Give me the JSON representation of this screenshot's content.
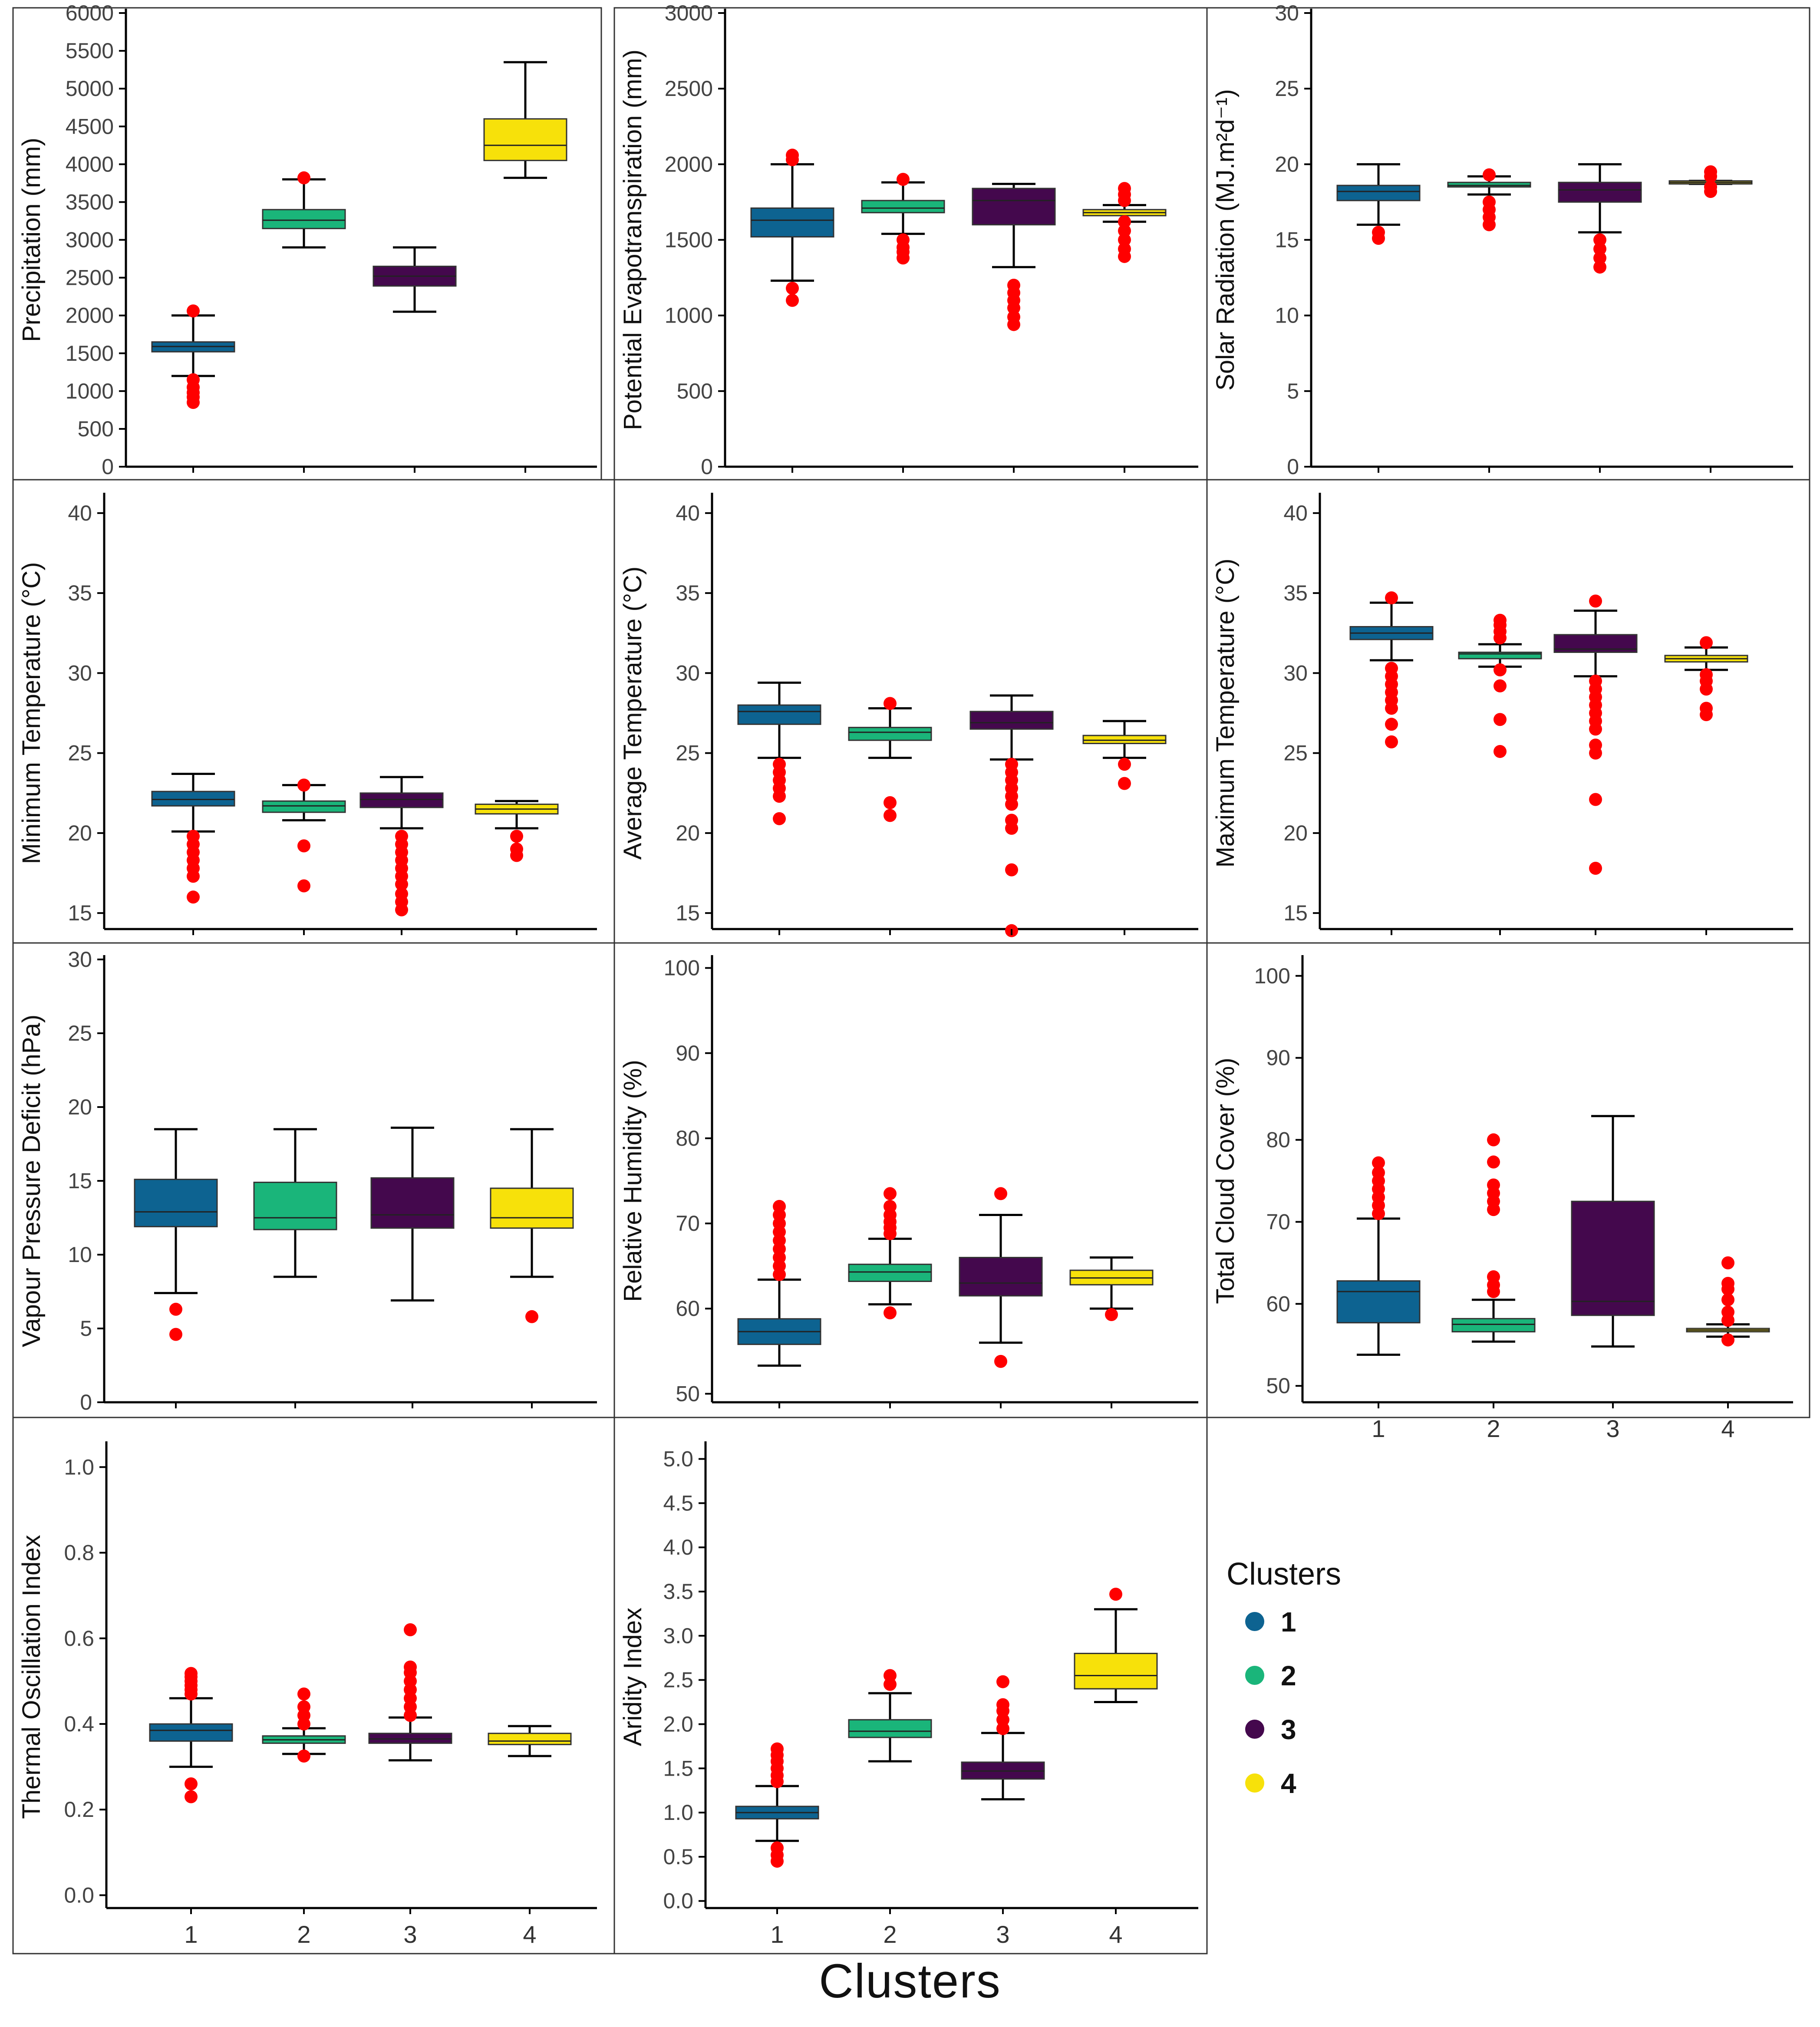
{
  "figure": {
    "x_title": "Clusters",
    "legend_title": "Clusters",
    "outlier_color": "#ff0000",
    "legend": [
      {
        "label": "1",
        "color": "#0d6391"
      },
      {
        "label": "2",
        "color": "#1ab57a"
      },
      {
        "label": "3",
        "color": "#44084d"
      },
      {
        "label": "4",
        "color": "#f7e10a"
      }
    ]
  },
  "chart_data": [
    {
      "type": "box",
      "id": "precip",
      "ylabel": "Precipitation (mm)",
      "ylim": [
        0,
        6000
      ],
      "ticks": [
        "0",
        "500",
        "1000",
        "1500",
        "2000",
        "2500",
        "3000",
        "3500",
        "4000",
        "4500",
        "5000",
        "5500",
        "6000"
      ],
      "tick_values": [
        0,
        500,
        1000,
        1500,
        2000,
        2500,
        3000,
        3500,
        4000,
        4500,
        5000,
        5500,
        6000
      ],
      "categories": [],
      "show_xlabels": false,
      "boxes": [
        {
          "cluster": "1",
          "q1": 1520,
          "median": 1590,
          "q3": 1650,
          "wlo": 1200,
          "whi": 2000,
          "outliers": [
            850,
            920,
            980,
            1050,
            1150,
            2060
          ]
        },
        {
          "cluster": "2",
          "q1": 3150,
          "median": 3260,
          "q3": 3400,
          "wlo": 2900,
          "whi": 3800,
          "outliers": [
            3820
          ]
        },
        {
          "cluster": "3",
          "q1": 2390,
          "median": 2520,
          "q3": 2650,
          "wlo": 2050,
          "whi": 2900,
          "outliers": []
        },
        {
          "cluster": "4",
          "q1": 4050,
          "median": 4250,
          "q3": 4600,
          "wlo": 3820,
          "whi": 5350,
          "outliers": []
        }
      ]
    },
    {
      "type": "box",
      "id": "pet",
      "ylabel": "Potential Evapotranspiration (mm)",
      "ylim": [
        0,
        3000
      ],
      "ticks": [
        "0",
        "500",
        "1000",
        "1500",
        "2000",
        "2500",
        "3000"
      ],
      "tick_values": [
        0,
        500,
        1000,
        1500,
        2000,
        2500,
        3000
      ],
      "categories": [],
      "show_xlabels": false,
      "boxes": [
        {
          "cluster": "1",
          "q1": 1520,
          "median": 1630,
          "q3": 1710,
          "wlo": 1230,
          "whi": 2000,
          "outliers": [
            1100,
            1180,
            2030,
            2060
          ]
        },
        {
          "cluster": "2",
          "q1": 1680,
          "median": 1710,
          "q3": 1760,
          "wlo": 1540,
          "whi": 1880,
          "outliers": [
            1380,
            1420,
            1450,
            1500,
            1900
          ]
        },
        {
          "cluster": "3",
          "q1": 1600,
          "median": 1760,
          "q3": 1840,
          "wlo": 1320,
          "whi": 1870,
          "outliers": [
            940,
            990,
            1050,
            1100,
            1150,
            1200
          ]
        },
        {
          "cluster": "4",
          "q1": 1660,
          "median": 1680,
          "q3": 1700,
          "wlo": 1620,
          "whi": 1730,
          "outliers": [
            1390,
            1440,
            1500,
            1560,
            1620,
            1760,
            1800,
            1840
          ]
        }
      ]
    },
    {
      "type": "box",
      "id": "solar",
      "ylabel": "Solar Radiation (MJ.m²d⁻¹)",
      "ylim": [
        0,
        30
      ],
      "ticks": [
        "0",
        "5",
        "10",
        "15",
        "20",
        "25",
        "30"
      ],
      "tick_values": [
        0,
        5,
        10,
        15,
        20,
        25,
        30
      ],
      "categories": [],
      "show_xlabels": false,
      "boxes": [
        {
          "cluster": "1",
          "q1": 17.6,
          "median": 18.2,
          "q3": 18.6,
          "wlo": 16.0,
          "whi": 20.0,
          "outliers": [
            15.1,
            15.5
          ]
        },
        {
          "cluster": "2",
          "q1": 18.5,
          "median": 18.6,
          "q3": 18.8,
          "wlo": 18.0,
          "whi": 19.2,
          "outliers": [
            16.0,
            16.5,
            17.0,
            17.5,
            19.3
          ]
        },
        {
          "cluster": "3",
          "q1": 17.5,
          "median": 18.3,
          "q3": 18.8,
          "wlo": 15.5,
          "whi": 20.0,
          "outliers": [
            13.2,
            13.8,
            14.4,
            15.0
          ]
        },
        {
          "cluster": "4",
          "q1": 18.7,
          "median": 18.8,
          "q3": 18.9,
          "wlo": 18.7,
          "whi": 18.9,
          "outliers": [
            18.2,
            18.5,
            19.2,
            19.5
          ]
        }
      ]
    },
    {
      "type": "box",
      "id": "tmin",
      "ylabel": "Minimum Temperature (°C)",
      "ylim": [
        14,
        41
      ],
      "ticks": [
        "15",
        "20",
        "25",
        "30",
        "35",
        "40"
      ],
      "tick_values": [
        15,
        20,
        25,
        30,
        35,
        40
      ],
      "categories": [],
      "show_xlabels": false,
      "boxes": [
        {
          "cluster": "1",
          "q1": 21.7,
          "median": 22.1,
          "q3": 22.6,
          "wlo": 20.1,
          "whi": 23.7,
          "outliers": [
            16.0,
            17.3,
            17.8,
            18.3,
            18.8,
            19.3,
            19.8
          ]
        },
        {
          "cluster": "2",
          "q1": 21.3,
          "median": 21.7,
          "q3": 22.0,
          "wlo": 20.8,
          "whi": 23.0,
          "outliers": [
            16.7,
            19.2,
            23.0
          ]
        },
        {
          "cluster": "3",
          "q1": 21.6,
          "median": 22.1,
          "q3": 22.5,
          "wlo": 20.3,
          "whi": 23.5,
          "outliers": [
            15.2,
            15.7,
            16.2,
            16.8,
            17.3,
            17.8,
            18.3,
            18.8,
            19.3,
            19.8
          ]
        },
        {
          "cluster": "4",
          "q1": 21.2,
          "median": 21.5,
          "q3": 21.8,
          "wlo": 20.3,
          "whi": 22.0,
          "outliers": [
            18.6,
            19.0,
            19.8
          ]
        }
      ]
    },
    {
      "type": "box",
      "id": "tavg",
      "ylabel": "Average Temperature (°C)",
      "ylim": [
        14,
        41
      ],
      "ticks": [
        "15",
        "20",
        "25",
        "30",
        "35",
        "40"
      ],
      "tick_values": [
        15,
        20,
        25,
        30,
        35,
        40
      ],
      "categories": [],
      "show_xlabels": false,
      "boxes": [
        {
          "cluster": "1",
          "q1": 26.8,
          "median": 27.6,
          "q3": 28.0,
          "wlo": 24.7,
          "whi": 29.4,
          "outliers": [
            20.9,
            22.3,
            22.8,
            23.3,
            23.8,
            24.3
          ]
        },
        {
          "cluster": "2",
          "q1": 25.8,
          "median": 26.3,
          "q3": 26.6,
          "wlo": 24.7,
          "whi": 27.8,
          "outliers": [
            21.1,
            21.9,
            28.1
          ]
        },
        {
          "cluster": "3",
          "q1": 26.5,
          "median": 26.9,
          "q3": 27.6,
          "wlo": 24.6,
          "whi": 28.6,
          "outliers": [
            13.9,
            17.7,
            20.3,
            20.8,
            21.8,
            22.3,
            22.8,
            23.3,
            23.8,
            24.3
          ]
        },
        {
          "cluster": "4",
          "q1": 25.6,
          "median": 25.8,
          "q3": 26.1,
          "wlo": 24.7,
          "whi": 27.0,
          "outliers": [
            23.1,
            24.3
          ]
        }
      ]
    },
    {
      "type": "box",
      "id": "tmax",
      "ylabel": "Maximum Temperature (°C)",
      "ylim": [
        14,
        41
      ],
      "ticks": [
        "15",
        "20",
        "25",
        "30",
        "35",
        "40"
      ],
      "tick_values": [
        15,
        20,
        25,
        30,
        35,
        40
      ],
      "categories": [],
      "show_xlabels": false,
      "boxes": [
        {
          "cluster": "1",
          "q1": 32.1,
          "median": 32.5,
          "q3": 32.9,
          "wlo": 30.8,
          "whi": 34.4,
          "outliers": [
            25.7,
            26.8,
            27.8,
            28.3,
            28.8,
            29.3,
            29.8,
            30.3,
            34.7
          ]
        },
        {
          "cluster": "2",
          "q1": 30.9,
          "median": 31.2,
          "q3": 31.3,
          "wlo": 30.4,
          "whi": 31.8,
          "outliers": [
            25.1,
            27.1,
            29.2,
            30.2,
            32.2,
            32.6,
            33.0,
            33.3
          ]
        },
        {
          "cluster": "3",
          "q1": 31.3,
          "median": 31.5,
          "q3": 32.4,
          "wlo": 29.8,
          "whi": 33.9,
          "outliers": [
            17.8,
            22.1,
            25.0,
            25.5,
            26.5,
            27.0,
            27.5,
            28.0,
            28.5,
            29.0,
            29.5,
            34.5
          ]
        },
        {
          "cluster": "4",
          "q1": 30.7,
          "median": 30.9,
          "q3": 31.1,
          "wlo": 30.2,
          "whi": 31.6,
          "outliers": [
            27.4,
            27.8,
            29.0,
            29.5,
            29.9,
            31.9
          ]
        }
      ]
    },
    {
      "type": "box",
      "id": "vpd",
      "ylabel": "Vapour Pressure Deficit (hPa)",
      "ylim": [
        0,
        30
      ],
      "ticks": [
        "0",
        "5",
        "10",
        "15",
        "20",
        "25",
        "30"
      ],
      "tick_values": [
        0,
        5,
        10,
        15,
        20,
        25,
        30
      ],
      "categories": [],
      "show_xlabels": false,
      "boxes": [
        {
          "cluster": "1",
          "q1": 11.9,
          "median": 12.9,
          "q3": 15.1,
          "wlo": 7.4,
          "whi": 18.5,
          "outliers": [
            4.6,
            6.3
          ]
        },
        {
          "cluster": "2",
          "q1": 11.7,
          "median": 12.5,
          "q3": 14.9,
          "wlo": 8.5,
          "whi": 18.5,
          "outliers": []
        },
        {
          "cluster": "3",
          "q1": 11.8,
          "median": 12.7,
          "q3": 15.2,
          "wlo": 6.9,
          "whi": 18.6,
          "outliers": []
        },
        {
          "cluster": "4",
          "q1": 11.8,
          "median": 12.5,
          "q3": 14.5,
          "wlo": 8.5,
          "whi": 18.5,
          "outliers": [
            5.8
          ]
        }
      ]
    },
    {
      "type": "box",
      "id": "rh",
      "ylabel": "Relative Humidity (%)",
      "ylim": [
        49,
        101
      ],
      "ticks": [
        "50",
        "60",
        "70",
        "80",
        "90",
        "100"
      ],
      "tick_values": [
        50,
        60,
        70,
        80,
        90,
        100
      ],
      "categories": [],
      "show_xlabels": false,
      "boxes": [
        {
          "cluster": "1",
          "q1": 55.8,
          "median": 57.3,
          "q3": 58.8,
          "wlo": 53.3,
          "whi": 63.4,
          "outliers": [
            64.0,
            65.0,
            66.0,
            67.0,
            68.0,
            69.0,
            70.0,
            71.0,
            72.0
          ]
        },
        {
          "cluster": "2",
          "q1": 63.2,
          "median": 64.3,
          "q3": 65.2,
          "wlo": 60.5,
          "whi": 68.2,
          "outliers": [
            59.5,
            68.8,
            69.5,
            70.2,
            71.0,
            72.0,
            73.5
          ]
        },
        {
          "cluster": "3",
          "q1": 61.5,
          "median": 63.0,
          "q3": 66.0,
          "wlo": 56.0,
          "whi": 71.0,
          "outliers": [
            53.8,
            73.5
          ]
        },
        {
          "cluster": "4",
          "q1": 62.8,
          "median": 63.6,
          "q3": 64.5,
          "wlo": 60.0,
          "whi": 66.0,
          "outliers": [
            59.3
          ]
        }
      ]
    },
    {
      "type": "box",
      "id": "cloud",
      "ylabel": "Total Cloud Cover (%)",
      "ylim": [
        48,
        102
      ],
      "ticks": [
        "50",
        "60",
        "70",
        "80",
        "90",
        "100"
      ],
      "tick_values": [
        50,
        60,
        70,
        80,
        90,
        100
      ],
      "categories": [
        "1",
        "2",
        "3",
        "4"
      ],
      "show_xlabels": true,
      "boxes": [
        {
          "cluster": "1",
          "q1": 57.7,
          "median": 61.5,
          "q3": 62.8,
          "wlo": 53.8,
          "whi": 70.4,
          "outliers": [
            71.0,
            72.0,
            73.0,
            74.0,
            75.0,
            76.0,
            77.2
          ]
        },
        {
          "cluster": "2",
          "q1": 56.6,
          "median": 57.5,
          "q3": 58.2,
          "wlo": 55.4,
          "whi": 60.5,
          "outliers": [
            61.5,
            62.3,
            63.3,
            71.5,
            72.5,
            73.5,
            74.5,
            77.3,
            80.0
          ]
        },
        {
          "cluster": "3",
          "q1": 58.6,
          "median": 60.3,
          "q3": 72.5,
          "wlo": 54.8,
          "whi": 82.9,
          "outliers": []
        },
        {
          "cluster": "4",
          "q1": 56.6,
          "median": 56.8,
          "q3": 57.0,
          "wlo": 56.0,
          "whi": 57.5,
          "outliers": [
            55.6,
            58.0,
            59.0,
            60.5,
            61.8,
            62.5,
            65.0
          ]
        }
      ]
    },
    {
      "type": "box",
      "id": "toi",
      "ylabel": "Thermal Oscillation Index",
      "ylim": [
        -0.03,
        1.05
      ],
      "ticks": [
        "0.0",
        "0.2",
        "0.4",
        "0.6",
        "0.8",
        "1.0"
      ],
      "tick_values": [
        0,
        0.2,
        0.4,
        0.6,
        0.8,
        1.0
      ],
      "categories": [
        "1",
        "2",
        "3",
        "4"
      ],
      "show_xlabels": true,
      "boxes": [
        {
          "cluster": "1",
          "q1": 0.36,
          "median": 0.385,
          "q3": 0.4,
          "wlo": 0.3,
          "whi": 0.46,
          "outliers": [
            0.23,
            0.26,
            0.47,
            0.48,
            0.49,
            0.5,
            0.51,
            0.518
          ]
        },
        {
          "cluster": "2",
          "q1": 0.355,
          "median": 0.363,
          "q3": 0.372,
          "wlo": 0.33,
          "whi": 0.39,
          "outliers": [
            0.325,
            0.4,
            0.42,
            0.44,
            0.47
          ]
        },
        {
          "cluster": "3",
          "q1": 0.355,
          "median": 0.365,
          "q3": 0.378,
          "wlo": 0.315,
          "whi": 0.415,
          "outliers": [
            0.42,
            0.44,
            0.46,
            0.48,
            0.5,
            0.52,
            0.533,
            0.62
          ]
        },
        {
          "cluster": "4",
          "q1": 0.352,
          "median": 0.36,
          "q3": 0.378,
          "wlo": 0.325,
          "whi": 0.395,
          "outliers": []
        }
      ]
    },
    {
      "type": "box",
      "id": "ai",
      "ylabel": "Aridity Index",
      "ylim": [
        -0.08,
        5.15
      ],
      "ticks": [
        "0.0",
        "0.5",
        "1.0",
        "1.5",
        "2.0",
        "2.5",
        "3.0",
        "3.5",
        "4.0",
        "4.5",
        "5.0"
      ],
      "tick_values": [
        0,
        0.5,
        1.0,
        1.5,
        2.0,
        2.5,
        3.0,
        3.5,
        4.0,
        4.5,
        5.0
      ],
      "categories": [
        "1",
        "2",
        "3",
        "4"
      ],
      "show_xlabels": true,
      "boxes": [
        {
          "cluster": "1",
          "q1": 0.93,
          "median": 1.0,
          "q3": 1.07,
          "wlo": 0.68,
          "whi": 1.3,
          "outliers": [
            0.45,
            0.52,
            0.6,
            1.35,
            1.42,
            1.5,
            1.58,
            1.65,
            1.72
          ]
        },
        {
          "cluster": "2",
          "q1": 1.85,
          "median": 1.92,
          "q3": 2.05,
          "wlo": 1.58,
          "whi": 2.35,
          "outliers": [
            2.45,
            2.55
          ]
        },
        {
          "cluster": "3",
          "q1": 1.38,
          "median": 1.47,
          "q3": 1.57,
          "wlo": 1.15,
          "whi": 1.9,
          "outliers": [
            1.95,
            2.05,
            2.15,
            2.22,
            2.48
          ]
        },
        {
          "cluster": "4",
          "q1": 2.4,
          "median": 2.55,
          "q3": 2.8,
          "wlo": 2.25,
          "whi": 3.3,
          "outliers": [
            3.47
          ]
        }
      ]
    }
  ]
}
